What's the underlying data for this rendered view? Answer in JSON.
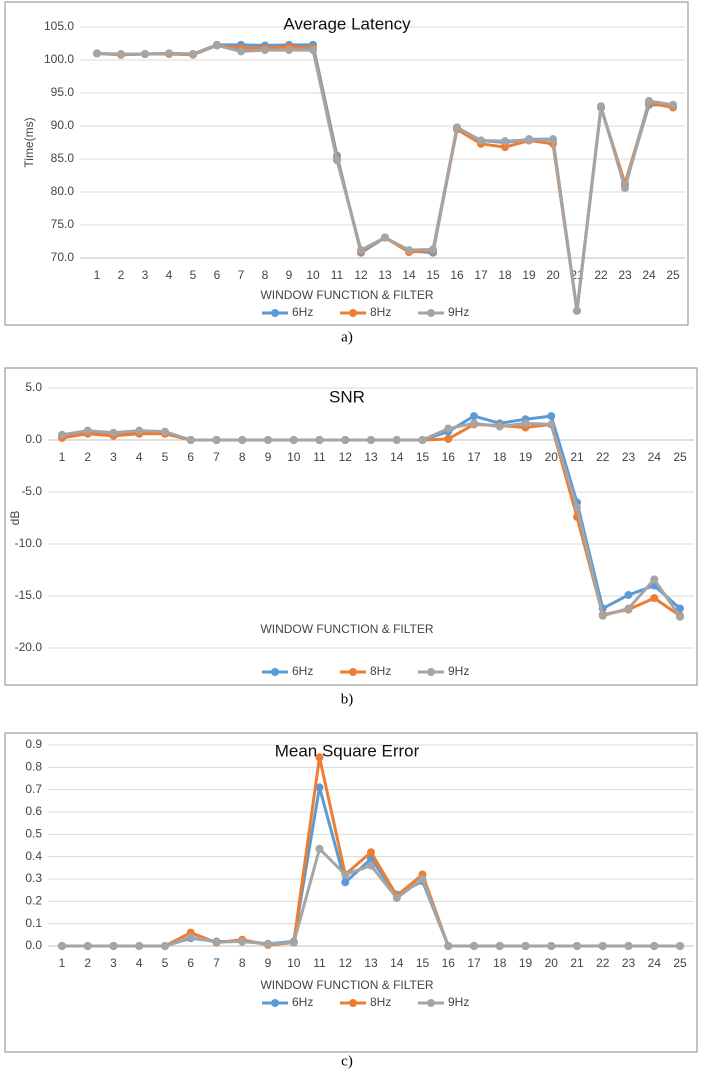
{
  "chart_data": [
    {
      "type": "line",
      "title": "Average Latency",
      "caption": "a)",
      "y_label": "Time(ms)",
      "x_label": "WINDOW FUNCTION & FILTER",
      "categories": [
        "1",
        "2",
        "3",
        "4",
        "5",
        "6",
        "7",
        "8",
        "9",
        "10",
        "11",
        "12",
        "13",
        "14",
        "15",
        "16",
        "17",
        "18",
        "19",
        "20",
        "21",
        "22",
        "23",
        "24",
        "25"
      ],
      "ylim": [
        70,
        105
      ],
      "yticks": [
        {
          "value": 70,
          "label": "70.0"
        },
        {
          "value": 75,
          "label": "75.0"
        },
        {
          "value": 80,
          "label": "80.0"
        },
        {
          "value": 85,
          "label": "85.0"
        },
        {
          "value": 90,
          "label": "90.0"
        },
        {
          "value": 95,
          "label": "95.0"
        },
        {
          "value": 100,
          "label": "100.0"
        },
        {
          "value": 105,
          "label": "105.0"
        }
      ],
      "grid": true,
      "series": [
        {
          "name": "6Hz",
          "color": "#5b9bd5",
          "values": [
            101,
            100.8,
            100.9,
            101,
            100.9,
            102.3,
            102.3,
            102.2,
            102.3,
            102.3,
            85.5,
            70.8,
            73.1,
            71.1,
            70.8,
            89.7,
            87.8,
            87.5,
            88,
            88,
            62,
            92.8,
            81,
            93.2,
            93.2
          ]
        },
        {
          "name": "8Hz",
          "color": "#ed7d31",
          "values": [
            101,
            100.8,
            100.9,
            100.9,
            100.8,
            102.2,
            101.8,
            101.8,
            102,
            101.8,
            85,
            71,
            73.1,
            70.9,
            71.1,
            89.5,
            87.3,
            86.8,
            87.8,
            87.3,
            62,
            92.8,
            81.3,
            93.5,
            92.8
          ]
        },
        {
          "name": "9Hz",
          "color": "#a5a5a5",
          "values": [
            101,
            100.9,
            100.9,
            101,
            100.9,
            102.2,
            101.3,
            101.5,
            101.5,
            101.5,
            84.8,
            71.2,
            73.1,
            71.2,
            71.3,
            89.8,
            87.8,
            87.7,
            87.9,
            87.9,
            62,
            93,
            80.6,
            93.8,
            93.2
          ]
        }
      ]
    },
    {
      "type": "line",
      "title": "SNR",
      "caption": "b)",
      "y_label": "dB",
      "x_label": "WINDOW FUNCTION & FILTER",
      "categories": [
        "1",
        "2",
        "3",
        "4",
        "5",
        "6",
        "7",
        "8",
        "9",
        "10",
        "11",
        "12",
        "13",
        "14",
        "15",
        "16",
        "17",
        "18",
        "19",
        "20",
        "21",
        "22",
        "23",
        "24",
        "25"
      ],
      "ylim": [
        -20,
        5
      ],
      "yticks": [
        {
          "value": -20,
          "label": "-20.0"
        },
        {
          "value": -15,
          "label": "-15.0"
        },
        {
          "value": -10,
          "label": "-10.0"
        },
        {
          "value": -5,
          "label": "-5.0"
        },
        {
          "value": 0,
          "label": "0.0"
        },
        {
          "value": 5,
          "label": "5.0"
        }
      ],
      "grid": true,
      "series": [
        {
          "name": "6Hz",
          "color": "#5b9bd5",
          "values": [
            0.3,
            0.7,
            0.6,
            0.7,
            0.7,
            0,
            0,
            0,
            0,
            0,
            0,
            0,
            0,
            0,
            0,
            0.8,
            2.3,
            1.6,
            2.0,
            2.3,
            -6.0,
            -16.2,
            -14.9,
            -14.0,
            -16.2
          ]
        },
        {
          "name": "8Hz",
          "color": "#ed7d31",
          "values": [
            0.2,
            0.6,
            0.4,
            0.6,
            0.6,
            0,
            0,
            0,
            0,
            0,
            0,
            0,
            0,
            0,
            0,
            0.1,
            1.5,
            1.4,
            1.2,
            1.5,
            -7.4,
            -16.8,
            -16.3,
            -15.2,
            -16.9
          ]
        },
        {
          "name": "9Hz",
          "color": "#a5a5a5",
          "values": [
            0.5,
            0.9,
            0.7,
            0.9,
            0.8,
            0,
            0,
            0,
            0,
            0,
            0,
            0,
            0,
            0,
            0,
            1.1,
            1.6,
            1.3,
            1.6,
            1.5,
            -6.5,
            -16.9,
            -16.2,
            -13.4,
            -17.0
          ]
        }
      ]
    },
    {
      "type": "line",
      "title": "Mean Square Error",
      "caption": "c)",
      "x_label": "WINDOW FUNCTION & FILTER",
      "categories": [
        "1",
        "2",
        "3",
        "4",
        "5",
        "6",
        "7",
        "8",
        "9",
        "10",
        "11",
        "12",
        "13",
        "14",
        "15",
        "16",
        "17",
        "18",
        "19",
        "20",
        "21",
        "22",
        "23",
        "24",
        "25"
      ],
      "ylim": [
        0,
        0.9
      ],
      "yticks": [
        {
          "value": 0,
          "label": "0.0"
        },
        0.1,
        0.2,
        0.3,
        0.4,
        0.5,
        0.6,
        0.7,
        0.8,
        0.9
      ],
      "grid": true,
      "series": [
        {
          "name": "6Hz",
          "color": "#5b9bd5",
          "values": [
            0,
            0,
            0,
            0,
            0,
            0.035,
            0.02,
            0.02,
            0.01,
            0.02,
            0.71,
            0.285,
            0.39,
            0.23,
            0.29,
            0,
            0,
            0,
            0,
            0,
            0,
            0,
            0,
            0,
            0
          ]
        },
        {
          "name": "8Hz",
          "color": "#ed7d31",
          "values": [
            0,
            0,
            0,
            0,
            0,
            0.06,
            0.015,
            0.028,
            0.005,
            0.015,
            0.845,
            0.32,
            0.42,
            0.225,
            0.32,
            0,
            0,
            0,
            0,
            0,
            0,
            0,
            0,
            0,
            0
          ]
        },
        {
          "name": "9Hz",
          "color": "#a5a5a5",
          "values": [
            0,
            0,
            0,
            0,
            0,
            0.04,
            0.018,
            0.02,
            0.01,
            0.015,
            0.435,
            0.32,
            0.36,
            0.215,
            0.3,
            0,
            0,
            0,
            0,
            0,
            0,
            0,
            0,
            0,
            0
          ]
        }
      ]
    }
  ]
}
